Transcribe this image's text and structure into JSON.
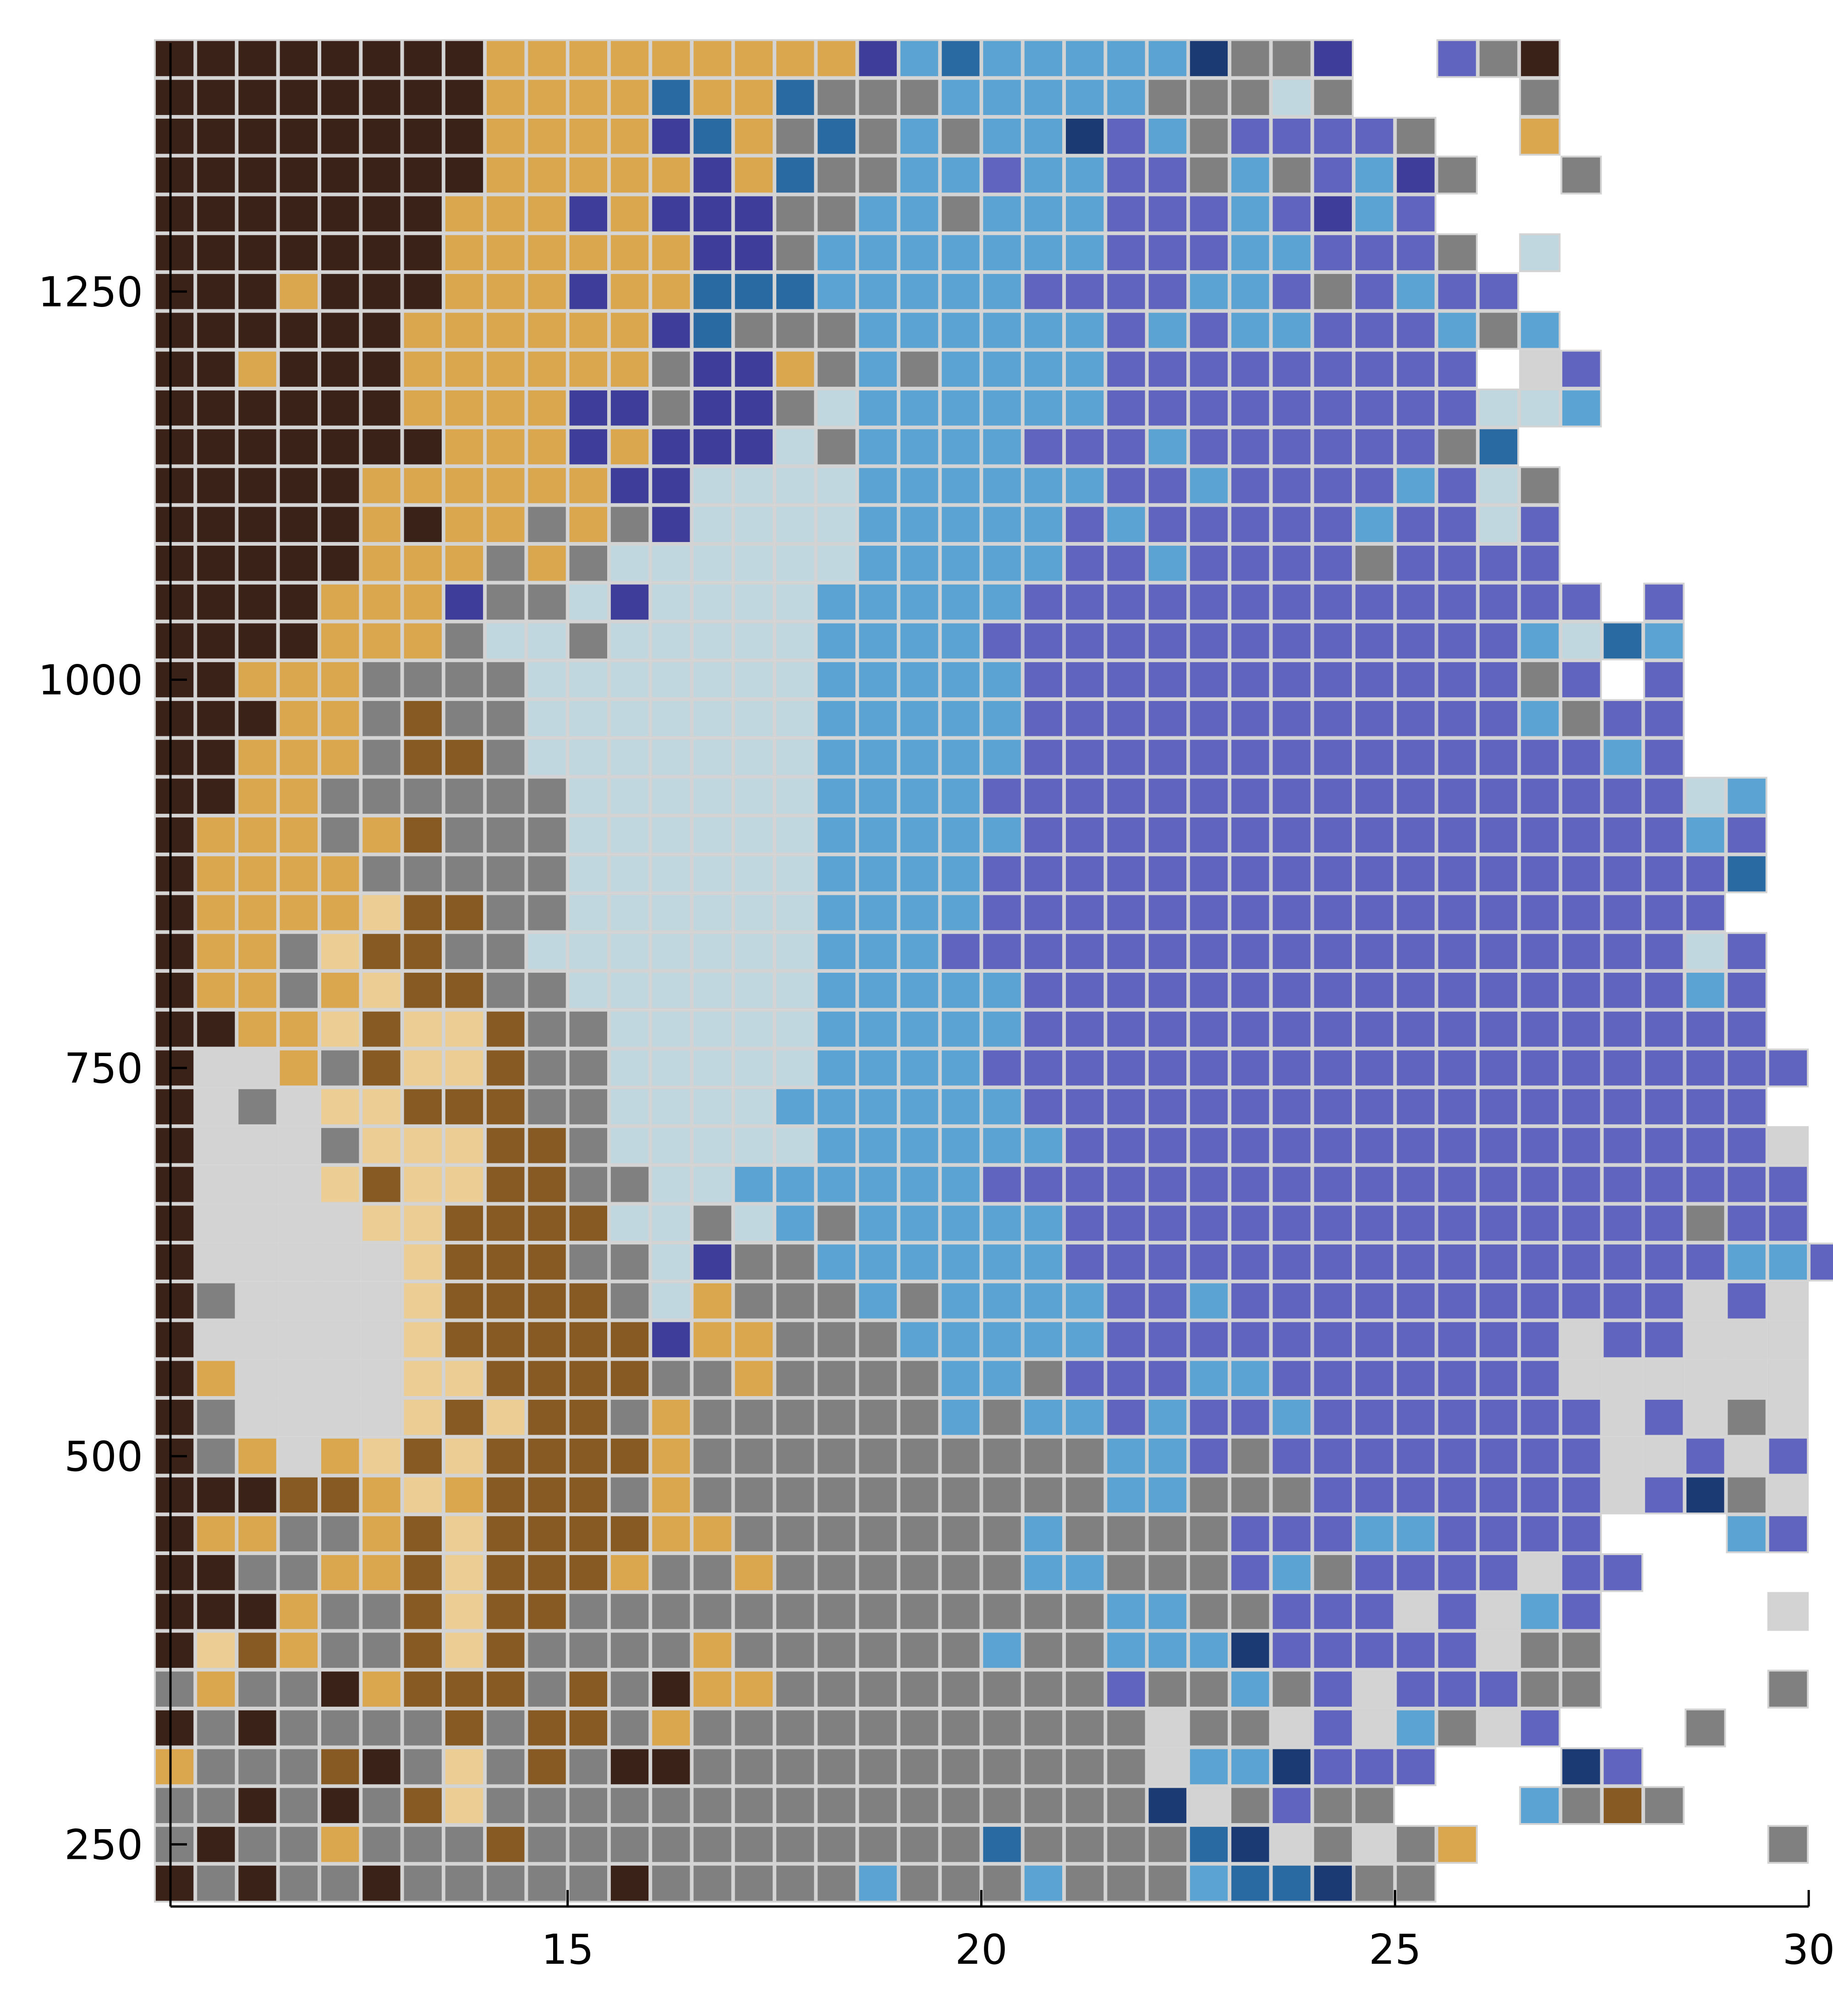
{
  "chart_data": {
    "type": "heatmap",
    "title": "",
    "xlabel": "",
    "ylabel": "",
    "x_ticks": [
      15,
      20,
      25,
      30
    ],
    "y_ticks": [
      250,
      500,
      750,
      1000,
      1250
    ],
    "xlim": [
      10.2,
      30
    ],
    "ylim": [
      210,
      1410
    ],
    "grid": false,
    "legend": "none",
    "x_start": 10.25,
    "x_step": 0.5,
    "y_start": 225,
    "y_step": 25,
    "cell_outline": "#d3d3d3",
    "palette": {
      "D": "#3b2219",
      "B": "#875a23",
      "O": "#daa64e",
      "P": "#eccd94",
      "L": "#d3d3d3",
      "G": "#808080",
      "C": "#c0d7df",
      "S": "#5ba3d3",
      "M": "#2a6aa3",
      "N": "#1b3a74",
      "I": "#3e3e9a",
      "V": "#6064bf",
      "_": null
    },
    "rows_top_to_bottom": [
      "DDDDDDDDOOOOOOOOOISMSSSSSNGGI__VGD_____",
      "DDDDDDDDOOOOMOOMGGGSSSSSGGGCG____G_____",
      "DDDDDDDDOOOOIMOGMGSGSSNVSGVVVVG__O_____",
      "DDDDDDDDOOOOOIOMGGSSVSSVVGSGVSIG__G____",
      "DDDDDDDOOOIOIIIGGSSGSSSVVVSVISV________",
      "DDDDDDDOOOOOOIIGSSSSSSSVVVSSVVVG_C_____",
      "DDDODDDOOOIOOMMMSSSSSVVVVSSVGVSVV______",
      "DDDDDDOOOOOOIMGGGSSSSSSVSVSSVVVSGS_____",
      "DDODDDOOOOOOGIIOGSGSSSSVVVVVVVVV_LV____",
      "DDDDDDOOOOIIGIIGCSSSSSSVVVVVVVVVCCS____",
      "DDDDDDDOOOIOIIICGSSSSVVVSVVVVVVGM______",
      "DDDDDOOOOOOIICCCCSSSSSSVVSVVVVSVCG_____",
      "DDDDDODOOGOGICCCCSSSSSVSVVVVVSVVCV_____",
      "DDDDDOOOGOGCCCCCCSSSSSVVSVVVVGVVVV_____",
      "DDDDOOOIGGCICCCCSSSSSVVVVVVVVVVVVVV_V__",
      "DDDDOOOGCCGCCCCCSSSSVVVVVVVVVVVVVSCMS__",
      "DDOOOGGGGCCCCCCCSSSSSVVVVVVVVVVVVGV_V__",
      "DDDOOGBGGCCCCCCCSSSSSVVVVVVVVVVVVSGVV__",
      "DDOOOGBBGCCCCCCCSSSSSVVVVVVVVVVVVVVSV__",
      "DDOOGGGGGGCCCCCCSSSSVVVVVVVVVVVVVVVVVCS_",
      "DOOOGOBGGGCCCCCCSSSSSVVVVVVVVVVVVVVVVSV_",
      "DOOOOGGGGGCCCCCCSSSSVVVVVVVVVVVVVVVVVVM_",
      "DOOOOPBBGGCCCCCCSSSSVVVVVVVVVVVVVVVVVV__",
      "DOOGPBBGGCCCCCCCSSSVVVVVVVVVVVVVVVVVVCV_",
      "DOOGOPBBGGCCCCCCSSSSSVVVVVVVVVVVVVVVVSV_",
      "DDOOPBPPBGGCCCCCSSSSSVVVVVVVVVVVVVVVVVV_",
      "DLLOGBPPBGGCCCCCSSSSVVVVVVVVVVVVVVVVVVVV",
      "DLGLPPBBBGGCCCCSSSSSSVVVVVVVVVVVVVVVVVV_",
      "DLLLGPPPBBGCCCCCSSSSSSVVVVVVVVVVVVVVVVVL",
      "DLLLPBPPBBGGCCSSSSSSVVVVVVVVVVVVVVVVVVVV",
      "DLLLLPPBBBBCCGCSGSSSSSVVVVVVVVVVVVVVVGVV",
      "DLLLLLPBBBGGCIGGSSSSSSVVVVVVVVVVVVVVVVSSV",
      "DGLLLLPBBBBGCOGGGSGSSSSVVSVVVVVVVVVVVLVL",
      "DLLLLLPBBBBBIOOGGGSSSSSVVVVVVVVVVVLVVLLL",
      "DOLLLLPPBBBBGGOGGGGSSGVVVSSVVVVVVVLLLLLL",
      "DGLLLLPBPBBGOGGGGGGSGSSVSVVSVVVVVVVLVLGL",
      "DGOLOPBPBBBBOGGGGGGGGGGSSVGVVVVVVVVLLVLV",
      "DDDBBOPOBBBGOGGGGGGGGGGSSGGGVVVVVVVLVNGL",
      "DOOGGOBPBBBBOOGGGGGGGSGGGGVVVSSVVVV___SV",
      "DDGGOOBPBBBOGGOGGGGGGSSGGGVSGVVVVLVV____",
      "DDDOGGBPBBGGGGGGGGGGGGGSSGGVVVLVLSV____L",
      "DPBOGGBPBGGGGOGGGGGGSGGSSSNVVVVVLGG____",
      "GOGGDOBBBGBGDOOGGGGGGGGVGGSGVLVVVGG____G",
      "DGDGGGGBGBBGOGGGGGGGGGGGLGGLVLSGLV___G__",
      "OGGGBDGPGBGDDGGGGGGGGGGGLSSNVVV___NV____",
      "GGDGDGBPGGGGGGGGGGGGGGGGNLGVGG___SGBG___",
      "GDGGOGGGBGGGGGGGGGGGMGGGGMNLGLGO_______G",
      "DGDGGDGGGGGDGGGGGSGGGSGGGSMMNGG_________"
    ]
  }
}
